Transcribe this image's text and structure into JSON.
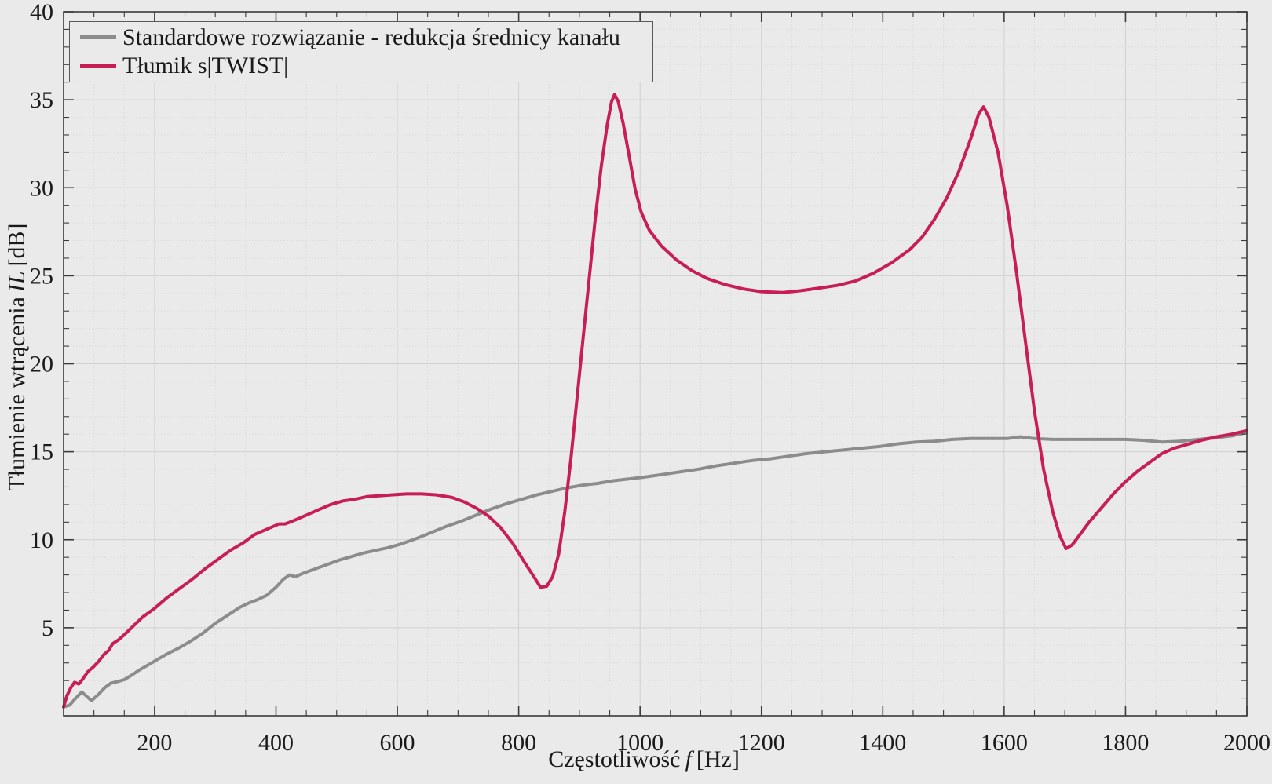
{
  "figure": {
    "background": "#EAEAEA",
    "plot_bg": "#EAEAEA",
    "border_color": "#3A3A3A",
    "grid_minor_color": "#DCDCDC",
    "grid_major_color": "#D0D0D0",
    "text_color": "#1A1A1A",
    "xlabel_parts": {
      "prefix": "Częstotliwość",
      "symbol": "f",
      "suffix": "[Hz]"
    },
    "ylabel_parts": {
      "prefix": "Tłumienie wtrącenia",
      "symbol": "IL",
      "suffix": "[dB]"
    }
  },
  "chart_data": {
    "type": "line",
    "title": "",
    "xlabel": "Częstotliwość f [Hz]",
    "ylabel": "Tłumienie wtrącenia IL [dB]",
    "xlim": [
      50,
      2000
    ],
    "ylim": [
      0,
      40
    ],
    "xticks": [
      200,
      400,
      600,
      800,
      1000,
      1200,
      1400,
      1600,
      1800,
      2000
    ],
    "yticks": [
      5,
      10,
      15,
      20,
      25,
      30,
      35,
      40
    ],
    "x_minor_step": 50,
    "y_minor_step": 1,
    "grid": "major+minor dotted",
    "legend_position": "top-left",
    "series": [
      {
        "name": "Standardowe rozwiązanie - redukcja średnicy kanału",
        "color": "#8C8C8C",
        "points": [
          [
            50,
            0.5
          ],
          [
            60,
            0.6
          ],
          [
            70,
            1.0
          ],
          [
            80,
            1.35
          ],
          [
            88,
            1.1
          ],
          [
            96,
            0.85
          ],
          [
            107,
            1.2
          ],
          [
            118,
            1.6
          ],
          [
            128,
            1.85
          ],
          [
            140,
            1.95
          ],
          [
            150,
            2.05
          ],
          [
            162,
            2.3
          ],
          [
            175,
            2.6
          ],
          [
            190,
            2.9
          ],
          [
            205,
            3.2
          ],
          [
            220,
            3.5
          ],
          [
            240,
            3.85
          ],
          [
            260,
            4.25
          ],
          [
            280,
            4.7
          ],
          [
            300,
            5.25
          ],
          [
            320,
            5.7
          ],
          [
            340,
            6.15
          ],
          [
            355,
            6.4
          ],
          [
            370,
            6.6
          ],
          [
            385,
            6.85
          ],
          [
            400,
            7.3
          ],
          [
            412,
            7.75
          ],
          [
            422,
            8.0
          ],
          [
            432,
            7.9
          ],
          [
            445,
            8.1
          ],
          [
            465,
            8.35
          ],
          [
            485,
            8.6
          ],
          [
            505,
            8.85
          ],
          [
            525,
            9.05
          ],
          [
            545,
            9.25
          ],
          [
            565,
            9.4
          ],
          [
            585,
            9.55
          ],
          [
            605,
            9.75
          ],
          [
            630,
            10.05
          ],
          [
            655,
            10.4
          ],
          [
            680,
            10.75
          ],
          [
            705,
            11.05
          ],
          [
            730,
            11.4
          ],
          [
            755,
            11.75
          ],
          [
            780,
            12.05
          ],
          [
            805,
            12.3
          ],
          [
            830,
            12.55
          ],
          [
            855,
            12.75
          ],
          [
            880,
            12.95
          ],
          [
            905,
            13.1
          ],
          [
            930,
            13.2
          ],
          [
            955,
            13.35
          ],
          [
            980,
            13.45
          ],
          [
            1005,
            13.55
          ],
          [
            1035,
            13.7
          ],
          [
            1065,
            13.85
          ],
          [
            1095,
            14.0
          ],
          [
            1125,
            14.2
          ],
          [
            1155,
            14.35
          ],
          [
            1185,
            14.5
          ],
          [
            1215,
            14.6
          ],
          [
            1245,
            14.75
          ],
          [
            1275,
            14.9
          ],
          [
            1305,
            15.0
          ],
          [
            1335,
            15.1
          ],
          [
            1365,
            15.2
          ],
          [
            1395,
            15.3
          ],
          [
            1425,
            15.45
          ],
          [
            1455,
            15.55
          ],
          [
            1485,
            15.6
          ],
          [
            1515,
            15.7
          ],
          [
            1545,
            15.75
          ],
          [
            1575,
            15.75
          ],
          [
            1605,
            15.75
          ],
          [
            1627,
            15.85
          ],
          [
            1650,
            15.75
          ],
          [
            1680,
            15.7
          ],
          [
            1710,
            15.7
          ],
          [
            1740,
            15.7
          ],
          [
            1770,
            15.7
          ],
          [
            1800,
            15.7
          ],
          [
            1830,
            15.65
          ],
          [
            1860,
            15.55
          ],
          [
            1890,
            15.6
          ],
          [
            1920,
            15.7
          ],
          [
            1950,
            15.8
          ],
          [
            1975,
            15.9
          ],
          [
            2000,
            16.1
          ]
        ]
      },
      {
        "name": "Tłumik s|TWIST|",
        "color": "#C81E56",
        "points": [
          [
            50,
            0.5
          ],
          [
            55,
            1.1
          ],
          [
            62,
            1.6
          ],
          [
            68,
            1.9
          ],
          [
            75,
            1.8
          ],
          [
            82,
            2.1
          ],
          [
            90,
            2.5
          ],
          [
            100,
            2.8
          ],
          [
            108,
            3.1
          ],
          [
            117,
            3.5
          ],
          [
            124,
            3.7
          ],
          [
            131,
            4.1
          ],
          [
            140,
            4.3
          ],
          [
            150,
            4.6
          ],
          [
            165,
            5.1
          ],
          [
            180,
            5.6
          ],
          [
            200,
            6.1
          ],
          [
            220,
            6.7
          ],
          [
            240,
            7.2
          ],
          [
            260,
            7.7
          ],
          [
            285,
            8.4
          ],
          [
            305,
            8.9
          ],
          [
            325,
            9.4
          ],
          [
            345,
            9.8
          ],
          [
            365,
            10.3
          ],
          [
            385,
            10.6
          ],
          [
            405,
            10.9
          ],
          [
            415,
            10.9
          ],
          [
            430,
            11.1
          ],
          [
            450,
            11.4
          ],
          [
            470,
            11.7
          ],
          [
            490,
            12.0
          ],
          [
            510,
            12.2
          ],
          [
            530,
            12.3
          ],
          [
            550,
            12.45
          ],
          [
            570,
            12.5
          ],
          [
            590,
            12.55
          ],
          [
            615,
            12.6
          ],
          [
            640,
            12.6
          ],
          [
            665,
            12.55
          ],
          [
            690,
            12.4
          ],
          [
            710,
            12.15
          ],
          [
            730,
            11.8
          ],
          [
            750,
            11.35
          ],
          [
            770,
            10.7
          ],
          [
            790,
            9.8
          ],
          [
            810,
            8.7
          ],
          [
            825,
            7.9
          ],
          [
            836,
            7.3
          ],
          [
            846,
            7.35
          ],
          [
            856,
            7.9
          ],
          [
            866,
            9.2
          ],
          [
            876,
            11.6
          ],
          [
            886,
            14.6
          ],
          [
            896,
            18.0
          ],
          [
            906,
            21.4
          ],
          [
            916,
            24.8
          ],
          [
            926,
            28.2
          ],
          [
            936,
            31.2
          ],
          [
            946,
            33.6
          ],
          [
            953,
            34.9
          ],
          [
            958,
            35.3
          ],
          [
            964,
            34.9
          ],
          [
            972,
            33.7
          ],
          [
            982,
            31.8
          ],
          [
            992,
            29.9
          ],
          [
            1002,
            28.6
          ],
          [
            1015,
            27.6
          ],
          [
            1035,
            26.7
          ],
          [
            1060,
            25.9
          ],
          [
            1085,
            25.3
          ],
          [
            1110,
            24.85
          ],
          [
            1140,
            24.5
          ],
          [
            1170,
            24.25
          ],
          [
            1200,
            24.1
          ],
          [
            1235,
            24.05
          ],
          [
            1265,
            24.15
          ],
          [
            1295,
            24.3
          ],
          [
            1325,
            24.45
          ],
          [
            1355,
            24.7
          ],
          [
            1385,
            25.15
          ],
          [
            1415,
            25.75
          ],
          [
            1445,
            26.5
          ],
          [
            1465,
            27.2
          ],
          [
            1485,
            28.2
          ],
          [
            1505,
            29.4
          ],
          [
            1525,
            30.9
          ],
          [
            1545,
            32.8
          ],
          [
            1558,
            34.2
          ],
          [
            1566,
            34.6
          ],
          [
            1575,
            34.0
          ],
          [
            1590,
            32.0
          ],
          [
            1605,
            29.0
          ],
          [
            1620,
            25.3
          ],
          [
            1635,
            21.3
          ],
          [
            1650,
            17.3
          ],
          [
            1665,
            14.0
          ],
          [
            1680,
            11.6
          ],
          [
            1692,
            10.2
          ],
          [
            1702,
            9.5
          ],
          [
            1712,
            9.7
          ],
          [
            1725,
            10.3
          ],
          [
            1740,
            11.0
          ],
          [
            1760,
            11.8
          ],
          [
            1780,
            12.6
          ],
          [
            1800,
            13.3
          ],
          [
            1820,
            13.9
          ],
          [
            1840,
            14.4
          ],
          [
            1860,
            14.9
          ],
          [
            1880,
            15.2
          ],
          [
            1900,
            15.4
          ],
          [
            1925,
            15.65
          ],
          [
            1950,
            15.85
          ],
          [
            1975,
            16.0
          ],
          [
            2000,
            16.2
          ]
        ]
      }
    ]
  }
}
